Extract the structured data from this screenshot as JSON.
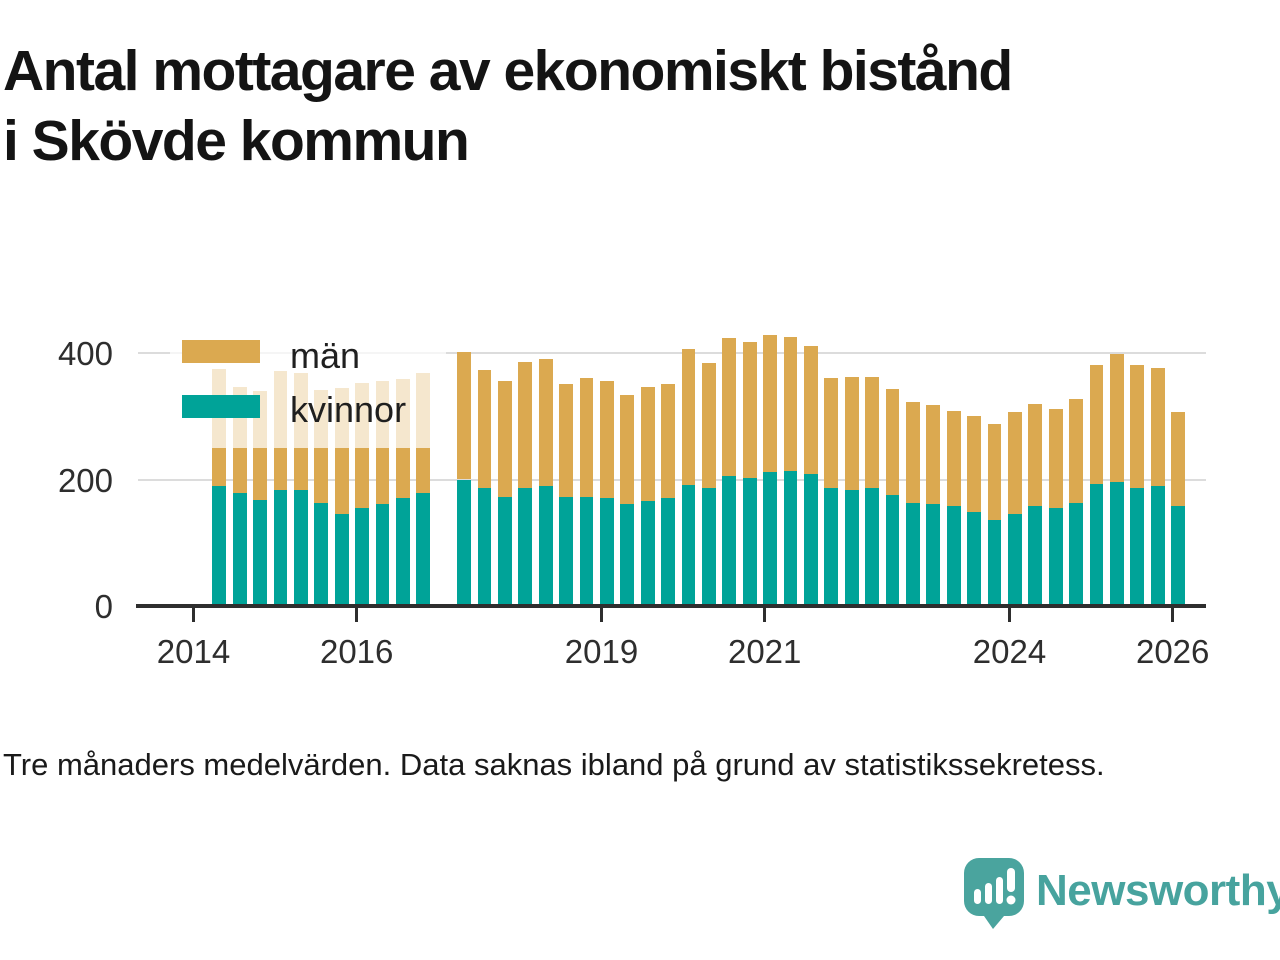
{
  "title": {
    "line1": "Antal mottagare av ekonomiskt bistånd",
    "line2": "i Skövde kommun"
  },
  "footnote": "Tre månaders medelvärden. Data saknas ibland på grund av statistikssekretess.",
  "brand": {
    "name": "Newsworthy"
  },
  "legend": {
    "items": [
      {
        "label": "män",
        "color": "#DBA950"
      },
      {
        "label": "kvinnor",
        "color": "#00A398"
      }
    ]
  },
  "colors": {
    "men": "#DBA950",
    "women": "#00A398",
    "grid": "#DCDCDC",
    "axis": "#2E2E2E",
    "title_text": "#141414",
    "brand_teal": "#47A39E",
    "legend_overlay": "rgba(255,255,255,0.72)"
  },
  "chart_data": {
    "type": "bar",
    "stacked": true,
    "title": "Antal mottagare av ekonomiskt bistånd i Skövde kommun",
    "xlabel": "",
    "ylabel": "",
    "ylim": [
      0,
      450
    ],
    "yticks": [
      0,
      200,
      400
    ],
    "grid": "horizontal",
    "legend_position": "top-left",
    "period_note": "quarterly three-month averages; null = data missing (statistikssekretess)",
    "categories": [
      "2014 kv1",
      "2014 kv2",
      "2014 kv3",
      "2014 kv4",
      "2015 kv1",
      "2015 kv2",
      "2015 kv3",
      "2015 kv4",
      "2016 kv1",
      "2016 kv2",
      "2016 kv3",
      "2016 kv4",
      "2017 kv1",
      "2017 kv2",
      "2017 kv3",
      "2017 kv4",
      "2018 kv1",
      "2018 kv2",
      "2018 kv3",
      "2018 kv4",
      "2019 kv1",
      "2019 kv2",
      "2019 kv3",
      "2019 kv4",
      "2020 kv1",
      "2020 kv2",
      "2020 kv3",
      "2020 kv4",
      "2021 kv1",
      "2021 kv2",
      "2021 kv3",
      "2021 kv4",
      "2022 kv1",
      "2022 kv2",
      "2022 kv3",
      "2022 kv4",
      "2023 kv1",
      "2023 kv2",
      "2023 kv3",
      "2023 kv4",
      "2024 kv1",
      "2024 kv2",
      "2024 kv3",
      "2024 kv4",
      "2025 kv1",
      "2025 kv2",
      "2025 kv3",
      "2025 kv4",
      "2026 kv1"
    ],
    "series": [
      {
        "name": "kvinnor",
        "color": "#00A398",
        "values": [
          null,
          190,
          178,
          168,
          184,
          183,
          163,
          146,
          155,
          162,
          170,
          179,
          null,
          200,
          186,
          172,
          186,
          189,
          173,
          172,
          170,
          161,
          166,
          171,
          192,
          187,
          205,
          202,
          212,
          214,
          208,
          186,
          184,
          187,
          175,
          163,
          162,
          158,
          149,
          136,
          146,
          158,
          155,
          163,
          193,
          196,
          187,
          190,
          158
        ]
      },
      {
        "name": "män",
        "color": "#DBA950",
        "values": [
          null,
          185,
          169,
          172,
          187,
          186,
          178,
          199,
          198,
          193,
          189,
          189,
          null,
          201,
          187,
          184,
          200,
          201,
          178,
          189,
          186,
          173,
          181,
          180,
          215,
          197,
          218,
          216,
          217,
          212,
          203,
          175,
          178,
          175,
          168,
          159,
          155,
          151,
          151,
          152,
          161,
          162,
          156,
          164,
          188,
          202,
          194,
          187,
          149
        ]
      }
    ],
    "xticks": [
      {
        "label": "2014",
        "slot": 0
      },
      {
        "label": "2016",
        "slot": 8
      },
      {
        "label": "2019",
        "slot": 20
      },
      {
        "label": "2021",
        "slot": 28
      },
      {
        "label": "2024",
        "slot": 40
      },
      {
        "label": "2026",
        "slot": 48
      }
    ]
  }
}
